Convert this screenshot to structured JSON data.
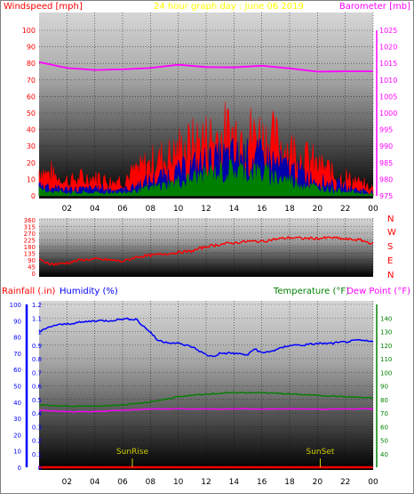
{
  "header": {
    "left_label": "Windspeed [mph]",
    "title": "24 hour graph day : June 06 2019",
    "right_label": "Barometer [mb]"
  },
  "colors": {
    "windspeed_axis": "#ff0000",
    "barometer_axis": "#ff00ff",
    "title": "#ffff00",
    "direction": "#ff0000",
    "rainfall_axis": "#ff0000",
    "humidity": "#0000ff",
    "temperature": "#008000",
    "dewpoint": "#ff00ff",
    "sun": "#cccc00",
    "wind_avg": "#0000aa",
    "wind_low": "#008000"
  },
  "x_ticks": [
    "02",
    "04",
    "06",
    "08",
    "10",
    "12",
    "14",
    "16",
    "18",
    "20",
    "22",
    "00"
  ],
  "compass": [
    "N",
    "W",
    "S",
    "E",
    "N"
  ],
  "panel3_labels": {
    "rainfall": "Rainfall (.in)",
    "humidity": "Humidity (%)",
    "temperature": "Temperature (°F)",
    "dewpoint": "Dew Point (°F)"
  },
  "sun_labels": {
    "sunrise": "SunRise",
    "sunset": "SunSet"
  },
  "chart_data": [
    {
      "type": "line",
      "title": "24 hour graph day : June 06 2019",
      "xlabel": "",
      "ylabel": "Windspeed [mph]",
      "ylabel_right": "Barometer [mb]",
      "x": [
        0,
        2,
        4,
        6,
        8,
        10,
        12,
        14,
        16,
        18,
        20,
        22,
        24
      ],
      "ylim": [
        0,
        100
      ],
      "y_ticks": [
        0,
        10,
        20,
        30,
        40,
        50,
        60,
        70,
        80,
        90,
        100
      ],
      "ylim_right": [
        975,
        1025
      ],
      "y_ticks_right": [
        975,
        980,
        985,
        990,
        995,
        1000,
        1005,
        1010,
        1015,
        1020,
        1025
      ],
      "series": [
        {
          "values": [
            18,
            10,
            12,
            10,
            22,
            30,
            38,
            42,
            40,
            32,
            20,
            12,
            4
          ]
        },
        {
          "values": [
            8,
            4,
            5,
            4,
            10,
            16,
            22,
            26,
            25,
            18,
            10,
            6,
            2
          ]
        },
        {
          "values": [
            4,
            2,
            2,
            2,
            5,
            9,
            14,
            17,
            15,
            10,
            5,
            3,
            1
          ]
        },
        {
          "axis": "right",
          "values": [
            1015.4,
            1013.6,
            1013.0,
            1013.2,
            1013.6,
            1014.6,
            1013.9,
            1013.8,
            1014.3,
            1013.5,
            1012.5,
            1012.6,
            1012.6
          ]
        }
      ]
    },
    {
      "type": "line",
      "ylabel": "",
      "ylim": [
        0,
        360
      ],
      "y_ticks": [
        0,
        45,
        90,
        135,
        180,
        225,
        270,
        315,
        360
      ],
      "series": [
        {
          "x": [
            0,
            1,
            2,
            3,
            4,
            5,
            6,
            7,
            8,
            9,
            10,
            11,
            12,
            13,
            14,
            15,
            16,
            17,
            18,
            19,
            20,
            21,
            22,
            23,
            24
          ],
          "values": [
            90,
            60,
            70,
            90,
            95,
            90,
            80,
            110,
            120,
            130,
            140,
            150,
            180,
            195,
            205,
            215,
            215,
            230,
            240,
            235,
            235,
            240,
            230,
            225,
            200
          ]
        }
      ]
    },
    {
      "type": "line",
      "ylabel": "Rainfall (.in)",
      "ylim": [
        0,
        1.2
      ],
      "y_ticks": [
        0,
        0.1,
        0.2,
        0.3,
        0.4,
        0.5,
        0.6,
        0.7,
        0.8,
        0.9,
        1,
        1.1,
        1.2
      ],
      "ylim_humidity": [
        0,
        100
      ],
      "y_ticks_humidity": [
        0,
        10,
        20,
        30,
        40,
        50,
        60,
        70,
        80,
        90,
        100
      ],
      "ylim_temp": [
        30,
        150
      ],
      "y_ticks_temp": [
        40,
        50,
        60,
        70,
        80,
        90,
        100,
        110,
        120,
        130,
        140
      ],
      "series": [
        {
          "name": "Rainfall (.in)",
          "axis": "rain",
          "x": [
            0,
            24
          ],
          "values": [
            0,
            0
          ]
        },
        {
          "name": "Humidity (%)",
          "axis": "humidity",
          "x": [
            0,
            1,
            2,
            3,
            4,
            5,
            6,
            7,
            7.3,
            8,
            8.5,
            9,
            10,
            11,
            12,
            12.5,
            13,
            14,
            15,
            15.5,
            16,
            17,
            18,
            19,
            20,
            21,
            22,
            23,
            24
          ],
          "values": [
            83,
            87,
            88,
            89,
            90,
            90,
            91,
            91,
            88,
            83,
            78,
            77,
            76,
            74,
            69,
            68,
            70,
            70,
            69,
            73,
            70,
            72,
            75,
            75,
            76,
            76,
            77,
            78,
            77
          ]
        },
        {
          "name": "Temperature (°F)",
          "axis": "temp",
          "x": [
            0,
            2,
            4,
            6,
            8,
            10,
            12,
            14,
            16,
            18,
            20,
            22,
            24
          ],
          "values": [
            76,
            75,
            75,
            76,
            78,
            82,
            84,
            85,
            85,
            84,
            83,
            82,
            81
          ]
        },
        {
          "name": "Dew Point (°F)",
          "axis": "temp",
          "x": [
            0,
            2,
            4,
            6,
            8,
            10,
            12,
            14,
            16,
            18,
            20,
            22,
            24
          ],
          "values": [
            72,
            71,
            71,
            72,
            73,
            73,
            73,
            73,
            73,
            73,
            73,
            73,
            73
          ]
        }
      ],
      "annotations": [
        {
          "x": 6.7,
          "text": "SunRise"
        },
        {
          "x": 20.2,
          "text": "SunSet"
        }
      ]
    }
  ]
}
